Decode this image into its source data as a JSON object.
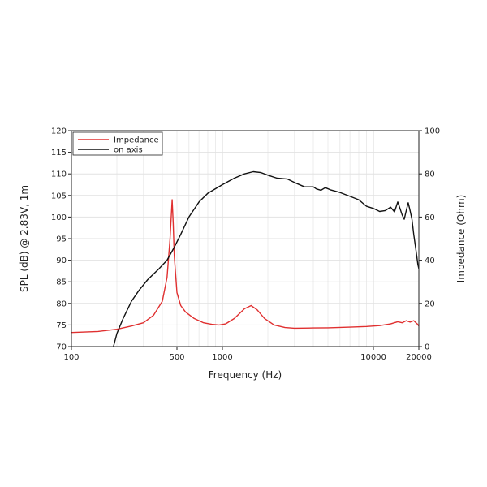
{
  "chart_data": {
    "type": "line",
    "xlabel": "Frequency (Hz)",
    "ylabel": "SPL (dB) @ 2.83V, 1m",
    "y2label": "Impedance (Ohm)",
    "xscale": "log",
    "xlim": [
      100,
      20000
    ],
    "ylim": [
      70,
      120
    ],
    "y2lim": [
      0,
      100
    ],
    "x_tick_labels": [
      "100",
      "500",
      "1000",
      "10000",
      "20000"
    ],
    "x_tick_values": [
      100,
      500,
      1000,
      10000,
      20000
    ],
    "y_ticks": [
      70,
      75,
      80,
      85,
      90,
      95,
      100,
      105,
      110,
      115,
      120
    ],
    "y2_ticks": [
      0,
      20,
      40,
      60,
      80,
      100
    ],
    "grid": true,
    "legend": "top-left",
    "series": [
      {
        "name": "Impedance",
        "axis": "right",
        "color": "#e03030",
        "points": [
          [
            100,
            6.5
          ],
          [
            150,
            7
          ],
          [
            200,
            8
          ],
          [
            250,
            9.5
          ],
          [
            300,
            11
          ],
          [
            350,
            14.5
          ],
          [
            400,
            21
          ],
          [
            430,
            32
          ],
          [
            450,
            50
          ],
          [
            465,
            68
          ],
          [
            472,
            57
          ],
          [
            480,
            42
          ],
          [
            500,
            25
          ],
          [
            530,
            19
          ],
          [
            570,
            16
          ],
          [
            650,
            13
          ],
          [
            750,
            11
          ],
          [
            850,
            10.3
          ],
          [
            950,
            10
          ],
          [
            1050,
            10.5
          ],
          [
            1200,
            13
          ],
          [
            1400,
            17.5
          ],
          [
            1550,
            19
          ],
          [
            1700,
            17
          ],
          [
            1900,
            13
          ],
          [
            2200,
            10
          ],
          [
            2600,
            8.8
          ],
          [
            3000,
            8.5
          ],
          [
            4000,
            8.6
          ],
          [
            5000,
            8.7
          ],
          [
            7000,
            9
          ],
          [
            9000,
            9.3
          ],
          [
            11000,
            9.7
          ],
          [
            13000,
            10.5
          ],
          [
            14500,
            11.5
          ],
          [
            15500,
            11
          ],
          [
            16500,
            12
          ],
          [
            17500,
            11.3
          ],
          [
            18500,
            12
          ],
          [
            19500,
            10.5
          ],
          [
            20000,
            9.5
          ]
        ]
      },
      {
        "name": "on axis",
        "color": "#111111",
        "axis": "left",
        "points": [
          [
            190,
            70
          ],
          [
            200,
            73
          ],
          [
            220,
            76.5
          ],
          [
            250,
            80.5
          ],
          [
            280,
            83
          ],
          [
            320,
            85.5
          ],
          [
            380,
            88
          ],
          [
            430,
            90
          ],
          [
            480,
            93
          ],
          [
            530,
            96
          ],
          [
            600,
            100
          ],
          [
            700,
            103.5
          ],
          [
            800,
            105.5
          ],
          [
            1000,
            107.5
          ],
          [
            1200,
            109
          ],
          [
            1400,
            110
          ],
          [
            1600,
            110.5
          ],
          [
            1800,
            110.3
          ],
          [
            2000,
            109.7
          ],
          [
            2300,
            109
          ],
          [
            2700,
            108.8
          ],
          [
            3000,
            108
          ],
          [
            3500,
            107
          ],
          [
            4000,
            107
          ],
          [
            4200,
            106.5
          ],
          [
            4500,
            106.2
          ],
          [
            4800,
            106.8
          ],
          [
            5200,
            106.3
          ],
          [
            6000,
            105.7
          ],
          [
            7000,
            104.8
          ],
          [
            8000,
            104
          ],
          [
            9000,
            102.5
          ],
          [
            10000,
            102
          ],
          [
            11000,
            101.3
          ],
          [
            12000,
            101.5
          ],
          [
            13000,
            102.3
          ],
          [
            13800,
            101.2
          ],
          [
            14500,
            103.5
          ],
          [
            15000,
            102
          ],
          [
            15500,
            100.5
          ],
          [
            16000,
            99.5
          ],
          [
            16500,
            101.5
          ],
          [
            17000,
            103.3
          ],
          [
            17500,
            101.5
          ],
          [
            18000,
            99.5
          ],
          [
            18500,
            96
          ],
          [
            19200,
            92
          ],
          [
            19700,
            89
          ],
          [
            20000,
            88
          ]
        ]
      }
    ]
  }
}
